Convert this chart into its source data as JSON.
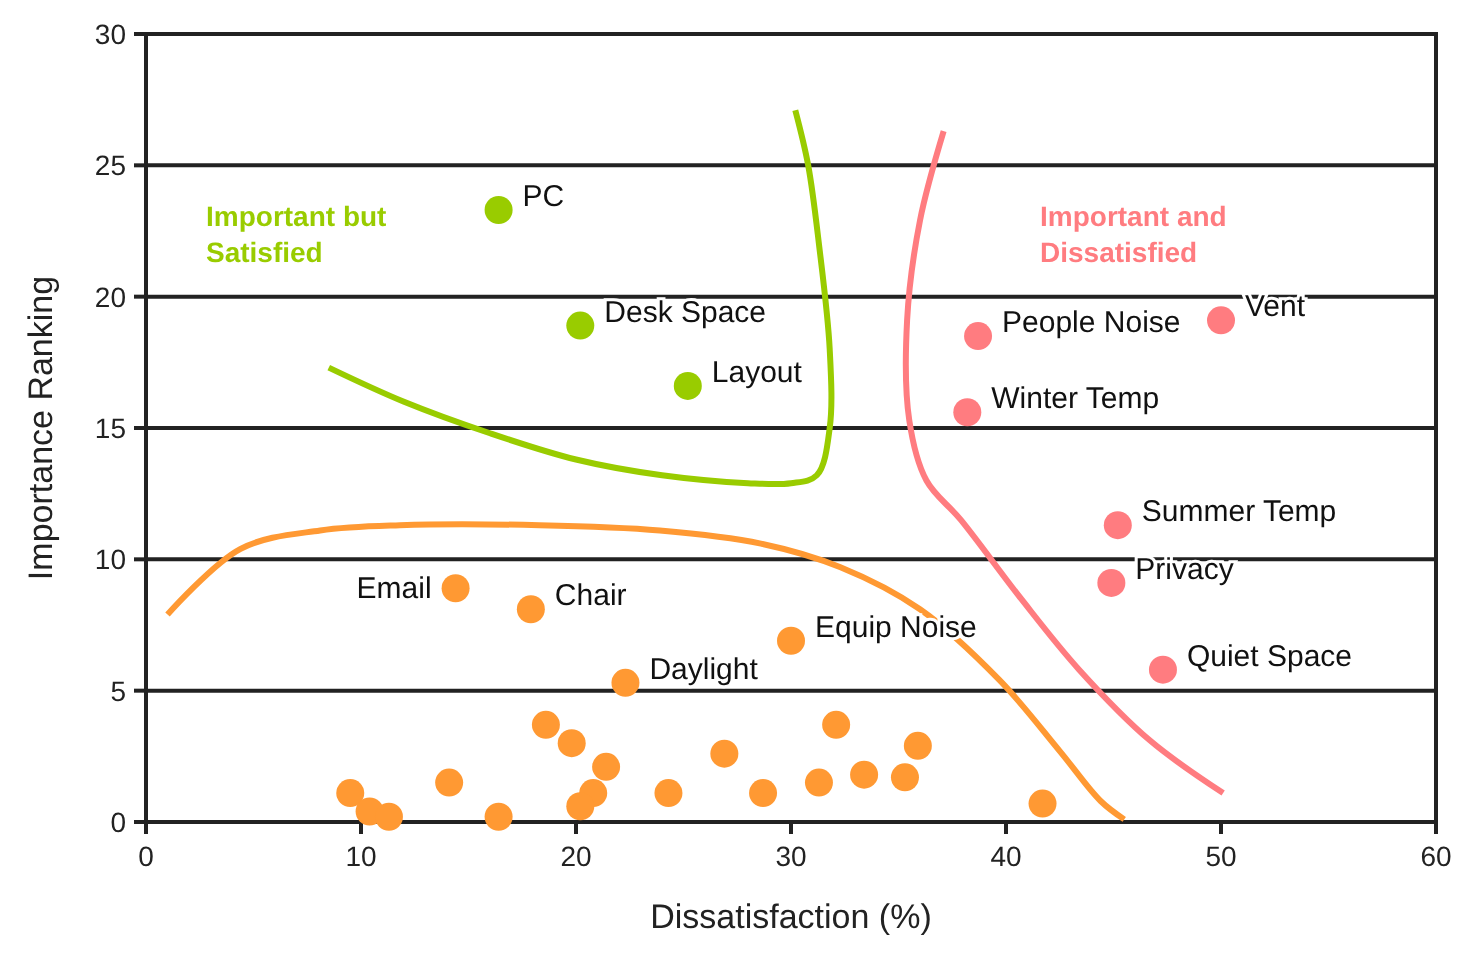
{
  "chart_data": {
    "type": "scatter",
    "xlabel": "Dissatisfaction (%)",
    "ylabel": "Importance Ranking",
    "xlim": [
      0,
      60
    ],
    "ylim": [
      0,
      30
    ],
    "xticks": [
      0,
      10,
      20,
      30,
      40,
      50,
      60
    ],
    "yticks": [
      0,
      5,
      10,
      15,
      20,
      25,
      30
    ],
    "grid": "y",
    "series": [
      {
        "marker": "circle",
        "color": "#99cc00",
        "x": [
          16.4,
          20.2,
          25.2
        ],
        "values": [
          23.3,
          18.9,
          16.6
        ]
      },
      {
        "marker": "circle",
        "color": "#ff7c80",
        "x": [
          38.7,
          50.0,
          38.2,
          45.2,
          44.9,
          47.3
        ],
        "values": [
          18.5,
          19.1,
          15.6,
          11.3,
          9.1,
          5.8
        ]
      },
      {
        "marker": "circle",
        "color": "#ff9933",
        "x": [
          14.4,
          17.9,
          22.3,
          30.0,
          9.5,
          10.4,
          11.3,
          14.1,
          16.4,
          18.6,
          19.8,
          21.4,
          20.8,
          20.2,
          24.3,
          26.9,
          28.7,
          32.1,
          35.9,
          33.4,
          31.3,
          35.3,
          41.7
        ],
        "values": [
          8.9,
          8.1,
          5.3,
          6.9,
          1.1,
          0.4,
          0.2,
          1.5,
          0.2,
          3.7,
          3.0,
          2.1,
          1.1,
          0.6,
          1.1,
          2.6,
          1.1,
          3.7,
          2.9,
          1.8,
          1.5,
          1.7,
          0.7
        ]
      },
      {
        "type": "line",
        "color": "#99cc00",
        "x": [
          8.5,
          12,
          16,
          20,
          24,
          28,
          30,
          31.2,
          31.8,
          31.8,
          31.3,
          30.8,
          30.2
        ],
        "values": [
          17.3,
          16,
          14.8,
          13.8,
          13.2,
          12.9,
          12.9,
          13.2,
          15,
          18,
          22,
          25,
          27.1
        ]
      },
      {
        "type": "line",
        "color": "#ff7c80",
        "x": [
          37.1,
          36,
          35.4,
          35.5,
          36.3,
          37.9,
          40.7,
          43.4,
          46.7,
          50.1
        ],
        "values": [
          26.3,
          22.9,
          19.1,
          15.3,
          13.0,
          11.5,
          8.5,
          5.8,
          3.1,
          1.1
        ]
      },
      {
        "type": "line",
        "color": "#ff9933",
        "x": [
          1.0,
          4.4,
          8.1,
          11.8,
          18.3,
          23.9,
          28.6,
          32.3,
          36.0,
          39.7,
          42.5,
          44.4,
          45.5
        ],
        "values": [
          7.9,
          10.4,
          11.1,
          11.3,
          11.3,
          11.1,
          10.6,
          9.7,
          8.1,
          5.4,
          2.7,
          0.8,
          0.1
        ]
      }
    ],
    "annotations": [
      "Important but Satisfied",
      "Important and Dissatisfied",
      {
        "text": "PC",
        "x": 16.4,
        "y": 23.3
      },
      {
        "text": "Desk Space",
        "x": 20.2,
        "y": 18.9
      },
      {
        "text": "Layout",
        "x": 25.2,
        "y": 16.6
      },
      {
        "text": "People Noise",
        "x": 38.7,
        "y": 18.5
      },
      {
        "text": "Vent",
        "x": 50.0,
        "y": 19.1
      },
      {
        "text": "Winter Temp",
        "x": 38.2,
        "y": 15.6
      },
      {
        "text": "Summer Temp",
        "x": 45.2,
        "y": 11.3
      },
      {
        "text": "Privacy",
        "x": 44.9,
        "y": 9.1
      },
      {
        "text": "Quiet Space",
        "x": 47.3,
        "y": 5.8
      },
      {
        "text": "Email",
        "x": 14.4,
        "y": 8.9
      },
      {
        "text": "Chair",
        "x": 17.9,
        "y": 8.1
      },
      {
        "text": "Daylight",
        "x": 22.3,
        "y": 5.3
      },
      {
        "text": "Equip Noise",
        "x": 30.0,
        "y": 6.9
      }
    ]
  }
}
